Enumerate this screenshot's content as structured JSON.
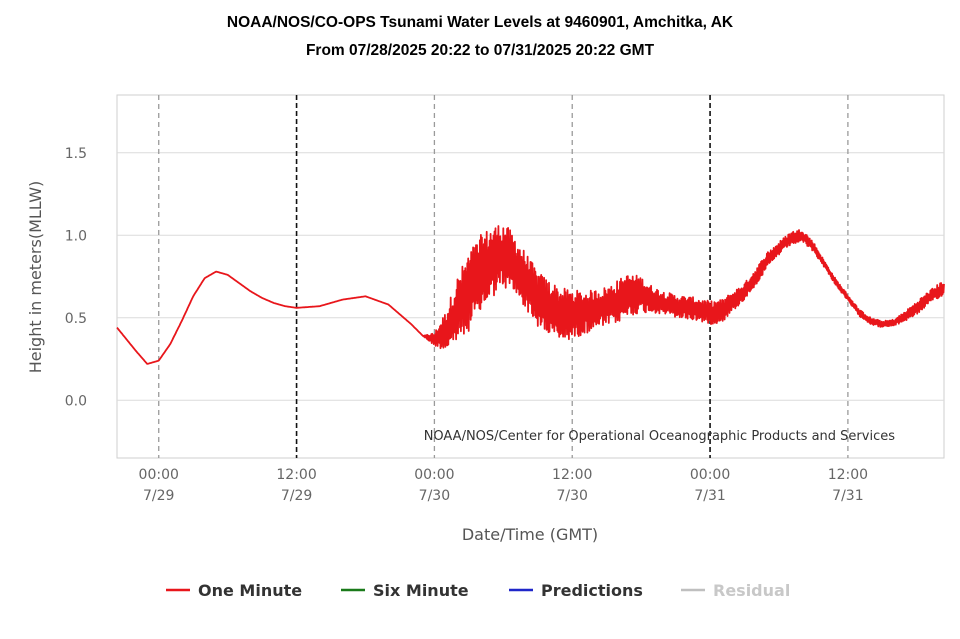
{
  "chart_data": {
    "type": "line",
    "title": "NOAA/NOS/CO-OPS Tsunami Water Levels at 9460901, Amchitka, AK",
    "subtitle": "From 07/28/2025 20:22 to 07/31/2025 20:22 GMT",
    "xlabel": "Date/Time (GMT)",
    "ylabel": "Height in meters(MLLW)",
    "ylim": [
      -0.35,
      1.85
    ],
    "xlim": [
      "2025-07-28 20:22",
      "2025-07-31 20:22"
    ],
    "yticks": [
      "0.0",
      "0.5",
      "1.0",
      "1.5"
    ],
    "xticks": [
      {
        "time": "2025-07-29 00:00",
        "line1": "00:00",
        "line2": "7/29"
      },
      {
        "time": "2025-07-29 12:00",
        "line1": "12:00",
        "line2": "7/29"
      },
      {
        "time": "2025-07-30 00:00",
        "line1": "00:00",
        "line2": "7/30"
      },
      {
        "time": "2025-07-30 12:00",
        "line1": "12:00",
        "line2": "7/30"
      },
      {
        "time": "2025-07-31 00:00",
        "line1": "00:00",
        "line2": "7/31"
      },
      {
        "time": "2025-07-31 12:00",
        "line1": "12:00",
        "line2": "7/31"
      }
    ],
    "vertical_markers": [
      {
        "time": "2025-07-29 00:00",
        "style": "gray-dashed"
      },
      {
        "time": "2025-07-29 12:00",
        "style": "black-dashed"
      },
      {
        "time": "2025-07-30 00:00",
        "style": "gray-dashed"
      },
      {
        "time": "2025-07-30 12:00",
        "style": "gray-dashed"
      },
      {
        "time": "2025-07-31 00:00",
        "style": "black-dashed"
      },
      {
        "time": "2025-07-31 12:00",
        "style": "gray-dashed"
      }
    ],
    "grid": "horizontal",
    "legend_position": "bottom",
    "annotation": "NOAA/NOS/Center for Operational Oceanographic Products and Services",
    "series": [
      {
        "name": "One Minute",
        "color": "#e8161b",
        "x": [
          "2025-07-28 20:22",
          "2025-07-28 22:00",
          "2025-07-28 23:00",
          "2025-07-29 00:00",
          "2025-07-29 01:00",
          "2025-07-29 02:00",
          "2025-07-29 03:00",
          "2025-07-29 04:00",
          "2025-07-29 05:00",
          "2025-07-29 06:00",
          "2025-07-29 07:00",
          "2025-07-29 08:00",
          "2025-07-29 09:00",
          "2025-07-29 10:00",
          "2025-07-29 11:00",
          "2025-07-29 12:00",
          "2025-07-29 14:00",
          "2025-07-29 16:00",
          "2025-07-29 18:00",
          "2025-07-29 20:00",
          "2025-07-29 22:00",
          "2025-07-29 23:00",
          "2025-07-30 00:00",
          "2025-07-30 01:00",
          "2025-07-30 02:00",
          "2025-07-30 03:00",
          "2025-07-30 04:00",
          "2025-07-30 05:00",
          "2025-07-30 06:00",
          "2025-07-30 07:00",
          "2025-07-30 08:00",
          "2025-07-30 09:00",
          "2025-07-30 10:00",
          "2025-07-30 11:00",
          "2025-07-30 12:00",
          "2025-07-30 13:00",
          "2025-07-30 14:00",
          "2025-07-30 15:00",
          "2025-07-30 16:00",
          "2025-07-30 17:00",
          "2025-07-30 18:00",
          "2025-07-30 19:00",
          "2025-07-30 20:00",
          "2025-07-30 21:00",
          "2025-07-30 22:00",
          "2025-07-30 23:00",
          "2025-07-31 00:00",
          "2025-07-31 01:00",
          "2025-07-31 02:00",
          "2025-07-31 03:00",
          "2025-07-31 04:00",
          "2025-07-31 05:00",
          "2025-07-31 06:00",
          "2025-07-31 07:00",
          "2025-07-31 08:00",
          "2025-07-31 09:00",
          "2025-07-31 10:00",
          "2025-07-31 11:00",
          "2025-07-31 12:00",
          "2025-07-31 13:00",
          "2025-07-31 14:00",
          "2025-07-31 15:00",
          "2025-07-31 16:00",
          "2025-07-31 17:00",
          "2025-07-31 18:00",
          "2025-07-31 19:00",
          "2025-07-31 20:22"
        ],
        "values": [
          0.44,
          0.3,
          0.22,
          0.24,
          0.34,
          0.48,
          0.63,
          0.74,
          0.78,
          0.76,
          0.71,
          0.66,
          0.62,
          0.59,
          0.57,
          0.56,
          0.57,
          0.61,
          0.63,
          0.58,
          0.46,
          0.39,
          0.37,
          0.42,
          0.55,
          0.66,
          0.76,
          0.84,
          0.88,
          0.82,
          0.72,
          0.61,
          0.56,
          0.52,
          0.52,
          0.53,
          0.55,
          0.57,
          0.6,
          0.64,
          0.64,
          0.61,
          0.59,
          0.57,
          0.56,
          0.55,
          0.53,
          0.54,
          0.6,
          0.66,
          0.75,
          0.85,
          0.92,
          0.98,
          1.0,
          0.93,
          0.82,
          0.71,
          0.62,
          0.53,
          0.48,
          0.46,
          0.47,
          0.51,
          0.56,
          0.62,
          0.68
        ],
        "oscillation_amplitude": [
          0,
          0,
          0,
          0,
          0,
          0,
          0,
          0,
          0,
          0,
          0,
          0,
          0,
          0,
          0,
          0,
          0,
          0,
          0,
          0,
          0,
          0,
          0.04,
          0.12,
          0.2,
          0.24,
          0.24,
          0.22,
          0.2,
          0.18,
          0.17,
          0.17,
          0.17,
          0.16,
          0.15,
          0.13,
          0.12,
          0.12,
          0.13,
          0.13,
          0.11,
          0.08,
          0.07,
          0.07,
          0.07,
          0.07,
          0.07,
          0.07,
          0.06,
          0.05,
          0.05,
          0.05,
          0.04,
          0.04,
          0.04,
          0.03,
          0.02,
          0.02,
          0.02,
          0.02,
          0.02,
          0.02,
          0.02,
          0.03,
          0.04,
          0.04,
          0.05
        ]
      },
      {
        "name": "Six Minute",
        "color": "#1a7a1a",
        "values": []
      },
      {
        "name": "Predictions",
        "color": "#1f26c9",
        "values": []
      },
      {
        "name": "Residual",
        "color": "#bfbfbf",
        "values": []
      }
    ]
  }
}
